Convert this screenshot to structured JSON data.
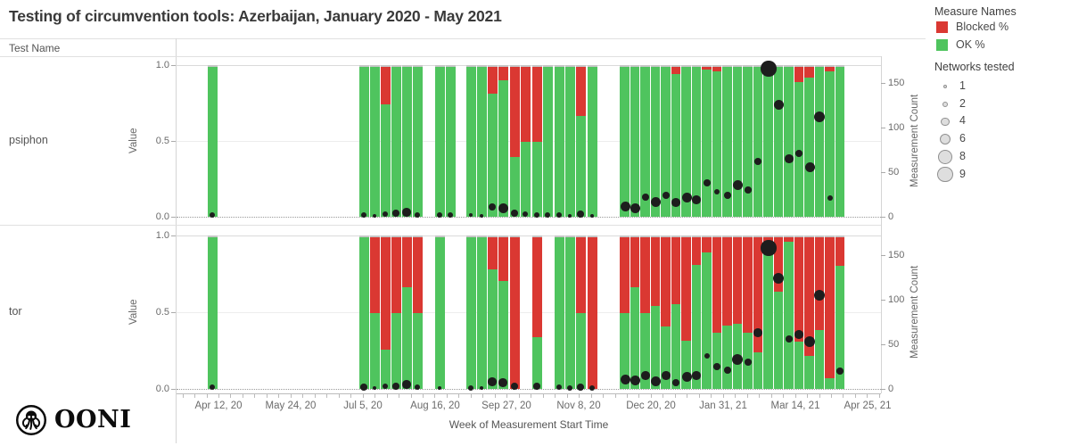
{
  "title": "Testing of circumvention tools: Azerbaijan, January 2020 - May 2021",
  "row_header": "Test Name",
  "footer": {
    "logo_text": "OONI"
  },
  "chart_data": {
    "type": "bar",
    "stacked": true,
    "title": "Testing of circumvention tools: Azerbaijan, January 2020 - May 2021",
    "xlabel": "Week of Measurement Start Time",
    "ylabel_left": "Value",
    "ylabel_right": "Measurement Count",
    "left_ticks": [
      "1.0",
      "0.5",
      "0.0"
    ],
    "right_axis_ticks": [
      0,
      50,
      100,
      150
    ],
    "left_axis_range": [
      0,
      1
    ],
    "right_axis_range": [
      0,
      170
    ],
    "x_tick_labels": [
      "Apr 12, 20",
      "May 24, 20",
      "Jul 5, 20",
      "Aug 16, 20",
      "Sep 27, 20",
      "Nov 8, 20",
      "Dec 20, 20",
      "Jan 31, 21",
      "Mar 14, 21",
      "Apr 25, 21"
    ],
    "x_tick_positions": [
      47,
      128,
      209,
      290,
      370,
      451,
      532,
      613,
      694,
      775
    ],
    "colors": {
      "ok": "#4fc45e",
      "blocked": "#da3832",
      "dot": "#1d1d1d"
    },
    "legend": {
      "measure_title": "Measure Names",
      "measures": [
        {
          "label": "Blocked %",
          "color": "#da3832"
        },
        {
          "label": "OK %",
          "color": "#4fc45e"
        }
      ],
      "networks_title": "Networks tested",
      "network_sizes": [
        1,
        2,
        4,
        6,
        8,
        9
      ]
    },
    "rows": [
      {
        "label": "psiphon",
        "bars": [
          [
            35,
            1
          ],
          [
            205,
            1
          ],
          [
            217,
            1
          ],
          [
            229,
            0.75
          ],
          [
            241,
            1
          ],
          [
            253,
            1
          ],
          [
            265,
            1
          ],
          [
            290,
            1
          ],
          [
            302,
            1
          ],
          [
            325,
            1
          ],
          [
            337,
            1
          ],
          [
            349,
            0.82
          ],
          [
            361,
            0.91
          ],
          [
            374,
            0.4
          ],
          [
            386,
            0.5
          ],
          [
            399,
            0.5
          ],
          [
            411,
            1
          ],
          [
            424,
            1
          ],
          [
            436,
            1
          ],
          [
            448,
            0.67
          ],
          [
            461,
            1
          ],
          [
            497,
            1
          ],
          [
            508.5,
            1
          ],
          [
            520,
            1
          ],
          [
            531.5,
            1
          ],
          [
            543,
            1
          ],
          [
            554.5,
            0.95
          ],
          [
            566,
            1
          ],
          [
            577.5,
            1
          ],
          [
            589,
            0.98
          ],
          [
            600.5,
            0.97
          ],
          [
            612,
            1
          ],
          [
            623.5,
            1
          ],
          [
            635,
            1
          ],
          [
            646.5,
            1
          ],
          [
            658,
            1
          ],
          [
            669.5,
            1
          ],
          [
            681,
            1
          ],
          [
            692.5,
            0.9
          ],
          [
            704,
            0.93
          ],
          [
            715.5,
            1
          ],
          [
            727,
            0.97
          ],
          [
            738.5,
            1
          ]
        ],
        "dots": [
          [
            40,
            2,
            2
          ],
          [
            210,
            2,
            2
          ],
          [
            222,
            1,
            1
          ],
          [
            234,
            3,
            2
          ],
          [
            246,
            4,
            3
          ],
          [
            258,
            5,
            4
          ],
          [
            270,
            2,
            2
          ],
          [
            295,
            2,
            2
          ],
          [
            307,
            2,
            2
          ],
          [
            330,
            2,
            1
          ],
          [
            342,
            1,
            1
          ],
          [
            354,
            11,
            3
          ],
          [
            366,
            10,
            5
          ],
          [
            379,
            4,
            3
          ],
          [
            391,
            3,
            2
          ],
          [
            404,
            2,
            2
          ],
          [
            416,
            2,
            2
          ],
          [
            429,
            2,
            2
          ],
          [
            441,
            1,
            1
          ],
          [
            453,
            3,
            3
          ],
          [
            466,
            1,
            1
          ],
          [
            503,
            12,
            5
          ],
          [
            514,
            10,
            5
          ],
          [
            526,
            22,
            3
          ],
          [
            537,
            17,
            5
          ],
          [
            549,
            24,
            3
          ],
          [
            560,
            16,
            4
          ],
          [
            572,
            22,
            5
          ],
          [
            583,
            19,
            4
          ],
          [
            595,
            38,
            3
          ],
          [
            606,
            28,
            2
          ],
          [
            618,
            24,
            3
          ],
          [
            629,
            36,
            5
          ],
          [
            641,
            30,
            3
          ],
          [
            652,
            62,
            3
          ],
          [
            664,
            166,
            9
          ],
          [
            675,
            126,
            5
          ],
          [
            687,
            65,
            4
          ],
          [
            698,
            71,
            3
          ],
          [
            710,
            56,
            5
          ],
          [
            721,
            112,
            6
          ],
          [
            733,
            21,
            2
          ]
        ]
      },
      {
        "label": "tor",
        "bars": [
          [
            35,
            1
          ],
          [
            205,
            1
          ],
          [
            217,
            0.5
          ],
          [
            229,
            0.26
          ],
          [
            241,
            0.5
          ],
          [
            253,
            0.67
          ],
          [
            265,
            0.5
          ],
          [
            290,
            1
          ],
          [
            325,
            1
          ],
          [
            337,
            1
          ],
          [
            349,
            0.79
          ],
          [
            361,
            0.71
          ],
          [
            374,
            0
          ],
          [
            399,
            0.34
          ],
          [
            424,
            1
          ],
          [
            436,
            1
          ],
          [
            448,
            0.5
          ],
          [
            461,
            0
          ],
          [
            497,
            0.5
          ],
          [
            508.5,
            0.67
          ],
          [
            520,
            0.5
          ],
          [
            531.5,
            0.55
          ],
          [
            543,
            0.41
          ],
          [
            554.5,
            0.56
          ],
          [
            566,
            0.32
          ],
          [
            577.5,
            0.82
          ],
          [
            589,
            0.9
          ],
          [
            600.5,
            0.37
          ],
          [
            612,
            0.42
          ],
          [
            623.5,
            0.43
          ],
          [
            635,
            0.37
          ],
          [
            646.5,
            0.24
          ],
          [
            658,
            0.94
          ],
          [
            669.5,
            0.64
          ],
          [
            681,
            0.97
          ],
          [
            692.5,
            0.31
          ],
          [
            704,
            0.22
          ],
          [
            715.5,
            0.39
          ],
          [
            727,
            0.07
          ],
          [
            738.5,
            0.81
          ]
        ],
        "dots": [
          [
            40,
            2,
            2
          ],
          [
            210,
            2,
            3
          ],
          [
            222,
            1,
            1
          ],
          [
            234,
            3,
            2
          ],
          [
            246,
            3,
            3
          ],
          [
            258,
            5,
            4
          ],
          [
            270,
            2,
            2
          ],
          [
            295,
            1,
            1
          ],
          [
            330,
            1,
            2
          ],
          [
            342,
            1,
            1
          ],
          [
            354,
            8,
            4
          ],
          [
            366,
            7,
            4
          ],
          [
            379,
            3,
            3
          ],
          [
            404,
            3,
            3
          ],
          [
            429,
            2,
            2
          ],
          [
            441,
            1,
            2
          ],
          [
            453,
            2,
            3
          ],
          [
            466,
            1,
            2
          ],
          [
            503,
            11,
            5
          ],
          [
            514,
            10,
            5
          ],
          [
            526,
            15,
            4
          ],
          [
            537,
            9,
            5
          ],
          [
            549,
            15,
            4
          ],
          [
            560,
            7,
            3
          ],
          [
            572,
            14,
            5
          ],
          [
            583,
            15,
            4
          ],
          [
            595,
            37,
            2
          ],
          [
            606,
            25,
            3
          ],
          [
            618,
            21,
            3
          ],
          [
            629,
            33,
            6
          ],
          [
            641,
            30,
            3
          ],
          [
            652,
            63,
            4
          ],
          [
            664,
            158,
            9
          ],
          [
            675,
            124,
            6
          ],
          [
            687,
            56,
            3
          ],
          [
            698,
            61,
            4
          ],
          [
            710,
            53,
            6
          ],
          [
            721,
            105,
            6
          ],
          [
            744,
            20,
            3
          ]
        ]
      }
    ]
  }
}
